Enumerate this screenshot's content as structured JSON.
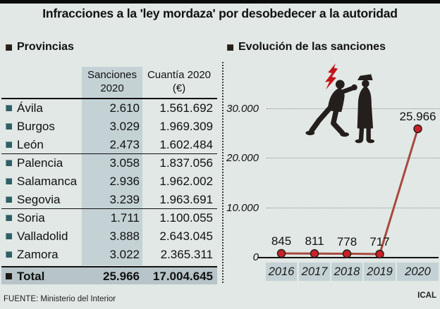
{
  "title": "Infracciones a la 'ley mordaza' por desobedecer a la autoridad",
  "provinces_panel": {
    "heading": "Provincias",
    "col_headers": {
      "sanciones": "Sanciones 2020",
      "cuantia": "Cuantía 2020 (€)"
    },
    "rows": [
      {
        "name": "Ávila",
        "sanciones": "2.610",
        "cuantia": "1.561.692"
      },
      {
        "name": "Burgos",
        "sanciones": "3.029",
        "cuantia": "1.969.309"
      },
      {
        "name": "León",
        "sanciones": "2.473",
        "cuantia": "1.602.484"
      },
      {
        "name": "Palencia",
        "sanciones": "3.058",
        "cuantia": "1.837.056"
      },
      {
        "name": "Salamanca",
        "sanciones": "2.936",
        "cuantia": "1.962.002"
      },
      {
        "name": "Segovia",
        "sanciones": "3.239",
        "cuantia": "1.963.691"
      },
      {
        "name": "Soria",
        "sanciones": "1.711",
        "cuantia": "1.100.055"
      },
      {
        "name": "Valladolid",
        "sanciones": "3.888",
        "cuantia": "2.643.045"
      },
      {
        "name": "Zamora",
        "sanciones": "3.022",
        "cuantia": "2.365.311"
      }
    ],
    "group_dividers_after": [
      2,
      5
    ],
    "total": {
      "label": "Total",
      "sanciones": "25.966",
      "cuantia": "17.004.645"
    }
  },
  "chart": {
    "heading": "Evolución de las sanciones"
  },
  "chart_data": {
    "type": "line",
    "title": "Evolución de las sanciones",
    "x": [
      "2016",
      "2017",
      "2018",
      "2019",
      "2020"
    ],
    "values": [
      845,
      811,
      778,
      717,
      25966
    ],
    "point_labels": [
      "845",
      "811",
      "778",
      "717",
      "25.966"
    ],
    "ylim": [
      0,
      32000
    ],
    "yticks": [
      {
        "value": 30000,
        "label": "30.000"
      },
      {
        "value": 20000,
        "label": "20.000"
      },
      {
        "value": 10000,
        "label": "10.000"
      },
      {
        "value": 0,
        "label": "0"
      }
    ],
    "grid": "dotted-horizontal",
    "legend": "none",
    "line_color": "#a8493f",
    "point_color": "#cb2027"
  },
  "footer": {
    "source": "FUENTE: Ministerio del Interior",
    "credit": "ICAL"
  },
  "colors": {
    "background": "#e1e8e5",
    "column_band": "#c4d2d6",
    "total_row": "#b7c5ca",
    "bullet_teal": "#2d6065",
    "accent_red": "#cb2027"
  }
}
